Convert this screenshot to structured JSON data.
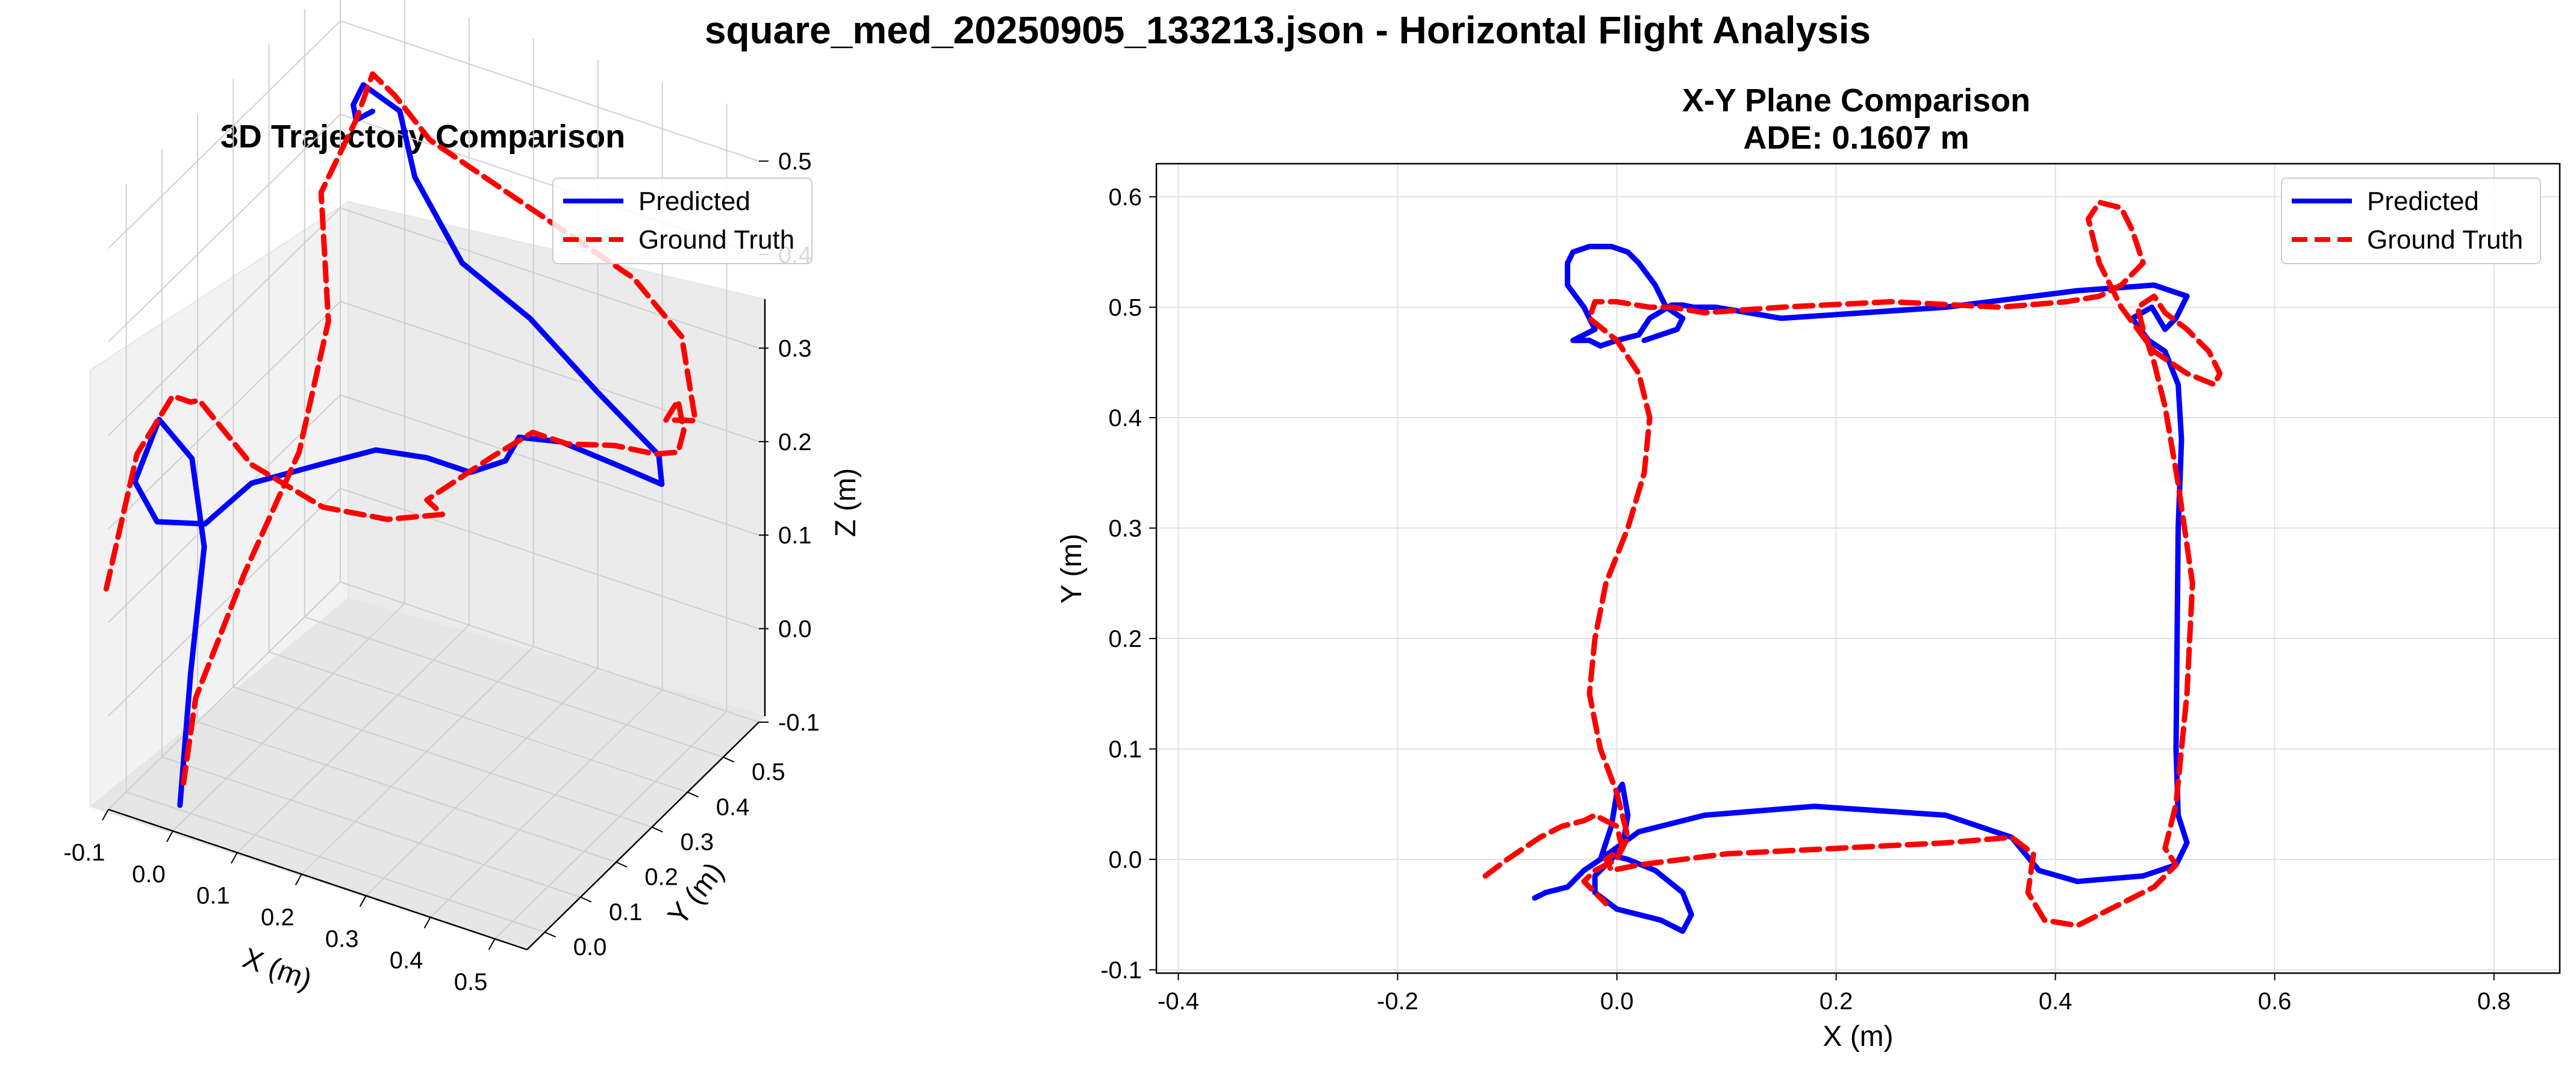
{
  "figure": {
    "suptitle": "square_med_20250905_133213.json - Horizontal Flight Analysis"
  },
  "colors": {
    "predicted": "#0000ff",
    "ground_truth": "#ff0000",
    "grid": "#e2e2e2",
    "pane": "#f2f2f2"
  },
  "chart_data": [
    {
      "type": "line",
      "projection": "3d",
      "title": "3D Trajectory Comparison",
      "xlabel": "X (m)",
      "ylabel": "Y (m)",
      "zlabel": "Z (m)",
      "xlim": [
        -0.1,
        0.55
      ],
      "ylim": [
        -0.05,
        0.6
      ],
      "zlim": [
        -0.1,
        0.55
      ],
      "xticks": [
        "-0.1",
        "0.0",
        "0.1",
        "0.2",
        "0.3",
        "0.4",
        "0.5"
      ],
      "yticks": [
        "0.0",
        "0.1",
        "0.2",
        "0.3",
        "0.4",
        "0.5"
      ],
      "zticks": [
        "-0.1",
        "0.0",
        "0.1",
        "0.2",
        "0.3",
        "0.4",
        "0.5"
      ],
      "grid": true,
      "legend": "top-right",
      "series": [
        {
          "name": "Predicted",
          "style": "solid",
          "x": [
            0.0,
            0.0,
            0.01,
            -0.02,
            -0.06,
            -0.07,
            -0.03,
            0.05,
            0.1,
            0.18,
            0.26,
            0.35,
            0.44,
            0.5,
            0.51,
            0.52,
            0.52,
            0.51,
            0.45,
            0.35,
            0.25,
            0.15,
            0.06,
            0.02,
            -0.02,
            -0.03,
            -0.02,
            0.0
          ],
          "y": [
            -0.03,
            0.0,
            0.02,
            0.04,
            0.02,
            -0.03,
            -0.04,
            -0.05,
            -0.01,
            0.04,
            0.05,
            0.03,
            -0.01,
            -0.02,
            0.0,
            0.1,
            0.25,
            0.4,
            0.5,
            0.51,
            0.5,
            0.49,
            0.52,
            0.55,
            0.52,
            0.51,
            0.5,
            0.51
          ],
          "z": [
            -0.08,
            0.05,
            0.18,
            0.26,
            0.3,
            0.25,
            0.22,
            0.24,
            0.28,
            0.3,
            0.33,
            0.35,
            0.37,
            0.4,
            0.42,
            0.38,
            0.3,
            0.22,
            0.2,
            0.24,
            0.3,
            0.34,
            0.4,
            0.45,
            0.48,
            0.46,
            0.45,
            0.46
          ]
        },
        {
          "name": "Ground Truth",
          "style": "dashed",
          "x": [
            -0.12,
            -0.1,
            -0.05,
            -0.02,
            0.0,
            0.03,
            0.1,
            0.2,
            0.3,
            0.38,
            0.4,
            0.48,
            0.52,
            0.53,
            0.52,
            0.5,
            0.48,
            0.45,
            0.43,
            0.45,
            0.5,
            0.54,
            0.48,
            0.4,
            0.3,
            0.2,
            0.1,
            0.04,
            0.0,
            -0.02,
            -0.03,
            0.02,
            0.03,
            0.0,
            -0.02,
            0.0
          ],
          "y": [
            -0.02,
            0.03,
            0.04,
            0.02,
            0.0,
            -0.03,
            -0.01,
            0.01,
            0.01,
            0.02,
            -0.06,
            -0.02,
            0.02,
            0.1,
            0.25,
            0.4,
            0.5,
            0.57,
            0.59,
            0.52,
            0.47,
            0.44,
            0.51,
            0.52,
            0.51,
            0.5,
            0.49,
            0.5,
            0.51,
            0.5,
            0.42,
            0.35,
            0.25,
            0.15,
            0.05,
            -0.02
          ],
          "z": [
            0.12,
            0.25,
            0.32,
            0.33,
            0.34,
            0.36,
            0.3,
            0.27,
            0.28,
            0.3,
            0.35,
            0.4,
            0.42,
            0.38,
            0.32,
            0.25,
            0.21,
            0.2,
            0.22,
            0.23,
            0.26,
            0.28,
            0.33,
            0.37,
            0.4,
            0.43,
            0.46,
            0.49,
            0.5,
            0.45,
            0.4,
            0.3,
            0.2,
            0.1,
            0.0,
            -0.06
          ]
        }
      ]
    },
    {
      "type": "line",
      "title": "X-Y Plane Comparison",
      "subtitle": "ADE: 0.1607 m",
      "xlabel": "X (m)",
      "ylabel": "Y (m)",
      "xlim": [
        -0.42,
        0.86
      ],
      "ylim": [
        -0.103,
        0.63
      ],
      "xticks": [
        -0.4,
        -0.2,
        0.0,
        0.2,
        0.4,
        0.6,
        0.8
      ],
      "yticks": [
        -0.1,
        0.0,
        0.1,
        0.2,
        0.3,
        0.4,
        0.5,
        0.6
      ],
      "grid": true,
      "legend": "top-right",
      "series": [
        {
          "name": "Predicted",
          "style": "solid",
          "x": [
            -0.075,
            -0.065,
            -0.045,
            -0.03,
            -0.015,
            -0.005,
            0.0,
            0.005,
            0.01,
            0.005,
            -0.01,
            -0.02,
            -0.02,
            0.0,
            0.02,
            0.04,
            0.06,
            0.068,
            0.06,
            0.035,
            0.01,
            -0.01,
            -0.015,
            0.02,
            0.08,
            0.18,
            0.3,
            0.36,
            0.385,
            0.42,
            0.48,
            0.51,
            0.52,
            0.512,
            0.51,
            0.511,
            0.512,
            0.515,
            0.512,
            0.5,
            0.485,
            0.47,
            0.488,
            0.5,
            0.51,
            0.52,
            0.49,
            0.42,
            0.3,
            0.15,
            0.09,
            0.07,
            0.06,
            0.05,
            0.03,
            0.02,
            0.0,
            -0.015,
            -0.025,
            -0.04,
            -0.02,
            -0.03,
            -0.045,
            -0.045,
            -0.04,
            -0.025,
            -0.005,
            0.01,
            0.02,
            0.035,
            0.045,
            0.06,
            0.055,
            0.025
          ],
          "y": [
            -0.035,
            -0.03,
            -0.025,
            -0.01,
            0.0,
            0.03,
            0.06,
            0.068,
            0.04,
            0.01,
            -0.005,
            -0.015,
            -0.03,
            -0.045,
            -0.05,
            -0.055,
            -0.065,
            -0.05,
            -0.03,
            -0.01,
            0.0,
            0.005,
            0.0,
            0.025,
            0.04,
            0.048,
            0.04,
            0.02,
            -0.01,
            -0.02,
            -0.015,
            -0.005,
            0.015,
            0.04,
            0.1,
            0.2,
            0.3,
            0.38,
            0.43,
            0.46,
            0.47,
            0.49,
            0.5,
            0.48,
            0.49,
            0.51,
            0.52,
            0.515,
            0.5,
            0.49,
            0.5,
            0.5,
            0.502,
            0.502,
            0.49,
            0.475,
            0.47,
            0.465,
            0.47,
            0.47,
            0.48,
            0.5,
            0.52,
            0.54,
            0.55,
            0.555,
            0.555,
            0.55,
            0.54,
            0.52,
            0.5,
            0.49,
            0.48,
            0.47
          ],
          "note": ""
        },
        {
          "name": "Ground Truth",
          "style": "dashed",
          "x": [
            -0.12,
            -0.1,
            -0.07,
            -0.05,
            -0.03,
            -0.02,
            0.0,
            0.005,
            -0.01,
            -0.005,
            0.02,
            0.06,
            0.1,
            0.2,
            0.3,
            0.36,
            0.38,
            0.375,
            0.39,
            0.42,
            0.46,
            0.49,
            0.51,
            0.5,
            0.51,
            0.52,
            0.525,
            0.512,
            0.5,
            0.49,
            0.48,
            0.475,
            0.49,
            0.5,
            0.52,
            0.53,
            0.54,
            0.55,
            0.545,
            0.52,
            0.49,
            0.46,
            0.44,
            0.43,
            0.44,
            0.46,
            0.47,
            0.48,
            0.46,
            0.44,
            0.41,
            0.35,
            0.25,
            0.15,
            0.08,
            0.05,
            0.03,
            0.0,
            -0.02,
            -0.025,
            0.0,
            0.02,
            0.03,
            0.025,
            0.01,
            -0.01,
            -0.02,
            -0.025,
            -0.015,
            0.0,
            0.01,
            0.0,
            -0.02,
            -0.03,
            -0.02,
            -0.01
          ],
          "y": [
            -0.015,
            0.0,
            0.02,
            0.03,
            0.035,
            0.04,
            0.03,
            0.01,
            0.0,
            -0.01,
            -0.005,
            0.0,
            0.005,
            0.01,
            0.015,
            0.02,
            0.005,
            -0.03,
            -0.055,
            -0.06,
            -0.04,
            -0.025,
            -0.005,
            0.01,
            0.05,
            0.15,
            0.25,
            0.34,
            0.41,
            0.45,
            0.48,
            0.5,
            0.51,
            0.495,
            0.48,
            0.47,
            0.46,
            0.44,
            0.43,
            0.44,
            0.46,
            0.5,
            0.54,
            0.58,
            0.595,
            0.59,
            0.57,
            0.54,
            0.52,
            0.51,
            0.505,
            0.5,
            0.505,
            0.5,
            0.495,
            0.5,
            0.5,
            0.505,
            0.505,
            0.49,
            0.47,
            0.44,
            0.4,
            0.35,
            0.3,
            0.25,
            0.2,
            0.15,
            0.1,
            0.06,
            0.02,
            0.0,
            -0.01,
            -0.02,
            -0.03,
            -0.04
          ],
          "note": ""
        }
      ]
    }
  ]
}
